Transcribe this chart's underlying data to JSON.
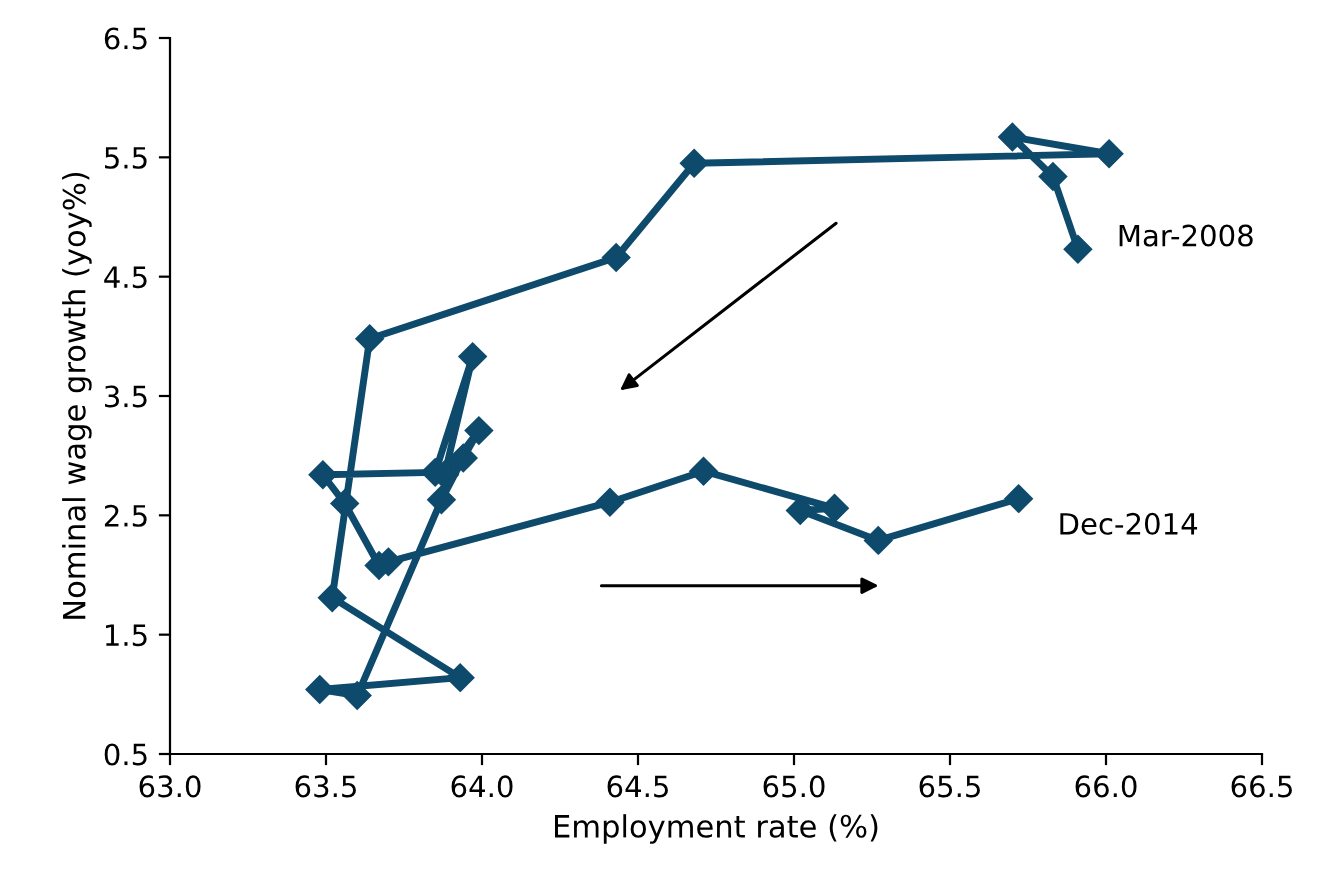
{
  "chart_data": {
    "type": "line",
    "xlabel": "Employment rate (%)",
    "ylabel": "Nominal wage growth (yoy%)",
    "series": [
      {
        "color": "#0e4a6c",
        "x": [
          65.91,
          65.83,
          65.7,
          66.01,
          64.68,
          64.43,
          63.64,
          63.52,
          63.93,
          63.48,
          63.6,
          63.87,
          63.94,
          63.99,
          63.88,
          63.97,
          63.85,
          63.49,
          63.56,
          63.67,
          63.7,
          64.41,
          64.71,
          65.13,
          65.02,
          65.27,
          65.72
        ],
        "values": [
          4.73,
          5.34,
          5.67,
          5.53,
          5.45,
          4.66,
          3.98,
          1.81,
          1.14,
          1.04,
          0.99,
          2.63,
          2.98,
          3.21,
          2.84,
          3.83,
          2.86,
          2.84,
          2.6,
          2.08,
          2.11,
          2.61,
          2.87,
          2.56,
          2.54,
          2.29,
          2.64
        ]
      }
    ],
    "xlim": [
      63.0,
      66.5
    ],
    "xticks": [
      {
        "value": 63.0,
        "label": "63.0"
      },
      {
        "value": 63.5,
        "label": "63.5"
      },
      {
        "value": 64.0,
        "label": "64.0"
      },
      {
        "value": 64.5,
        "label": "64.5"
      },
      {
        "value": 65.0,
        "label": "65.0"
      },
      {
        "value": 65.5,
        "label": "65.5"
      },
      {
        "value": 66.0,
        "label": "66.0"
      },
      {
        "value": 66.5,
        "label": "66.5"
      }
    ],
    "ylim": [
      0.5,
      6.5
    ],
    "yticks": [
      0.5,
      1.5,
      2.5,
      3.5,
      4.5,
      5.5,
      6.5
    ],
    "marker": "diamond",
    "line_style": "solid",
    "grid": false,
    "legend": false,
    "annotations": [
      {
        "text": "Mar-2008",
        "x": 65.91,
        "y": 4.73
      },
      {
        "text": "Dec-2014",
        "x": 65.72,
        "y": 2.64
      }
    ]
  }
}
